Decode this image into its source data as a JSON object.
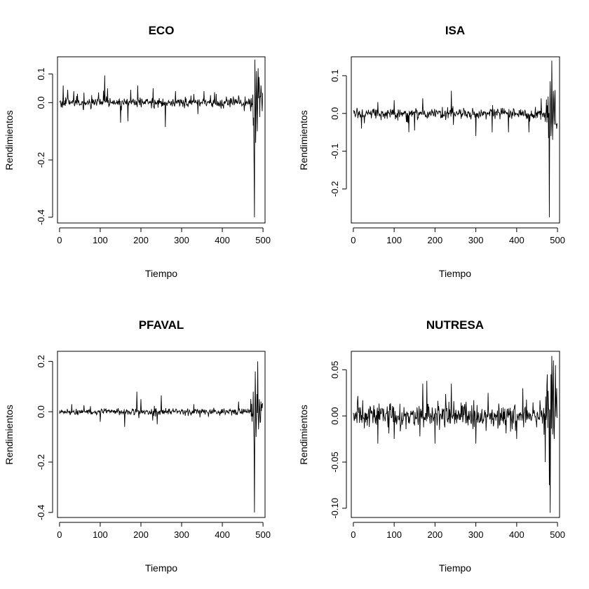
{
  "chart_data": [
    {
      "type": "line",
      "title": "ECO",
      "xlabel": "Tiempo",
      "ylabel": "Rendimientos",
      "xlim": [
        -5,
        505
      ],
      "ylim": [
        -0.42,
        0.16
      ],
      "xticks": [
        0,
        100,
        200,
        300,
        400,
        500
      ],
      "xtick_labels": [
        "0",
        "100",
        "200",
        "300",
        "400",
        "500"
      ],
      "yticks": [
        -0.4,
        -0.2,
        0.0,
        0.1
      ],
      "ytick_labels": [
        "-0.4",
        "-0.2",
        "0.0",
        "0.1"
      ],
      "series": [
        {
          "n": 500,
          "x_step": 1,
          "base_noise": 0.011,
          "late_noise": 0.045,
          "spikes": [
            [
              9,
              0.06
            ],
            [
              20,
              0.045
            ],
            [
              35,
              0.04
            ],
            [
              60,
              0.035
            ],
            [
              111,
              0.095
            ],
            [
              118,
              0.05
            ],
            [
              150,
              -0.07
            ],
            [
              168,
              -0.065
            ],
            [
              175,
              0.045
            ],
            [
              192,
              0.06
            ],
            [
              230,
              0.05
            ],
            [
              260,
              -0.085
            ],
            [
              285,
              0.04
            ],
            [
              330,
              0.03
            ],
            [
              340,
              -0.04
            ],
            [
              440,
              0.025
            ],
            [
              470,
              -0.03
            ],
            [
              476,
              -0.08
            ],
            [
              478,
              -0.22
            ],
            [
              479,
              -0.4
            ],
            [
              480,
              0.15
            ],
            [
              482,
              -0.14
            ],
            [
              484,
              0.11
            ],
            [
              486,
              -0.1
            ],
            [
              488,
              0.12
            ],
            [
              490,
              0.09
            ],
            [
              492,
              -0.05
            ],
            [
              495,
              0.06
            ],
            [
              498,
              -0.03
            ]
          ]
        }
      ]
    },
    {
      "type": "line",
      "title": "ISA",
      "xlabel": "Tiempo",
      "ylabel": "Rendimientos",
      "xlim": [
        -5,
        505
      ],
      "ylim": [
        -0.29,
        0.15
      ],
      "xticks": [
        0,
        100,
        200,
        300,
        400,
        500
      ],
      "xtick_labels": [
        "0",
        "100",
        "200",
        "300",
        "400",
        "500"
      ],
      "yticks": [
        -0.2,
        -0.1,
        0.0,
        0.1
      ],
      "ytick_labels": [
        "-0.2",
        "-0.1",
        "0.0",
        "0.1"
      ],
      "series": [
        {
          "n": 500,
          "x_step": 1,
          "base_noise": 0.01,
          "late_noise": 0.035,
          "spikes": [
            [
              20,
              -0.04
            ],
            [
              60,
              0.03
            ],
            [
              100,
              0.035
            ],
            [
              150,
              -0.045
            ],
            [
              170,
              0.04
            ],
            [
              240,
              0.06
            ],
            [
              245,
              -0.03
            ],
            [
              300,
              -0.06
            ],
            [
              340,
              -0.05
            ],
            [
              380,
              -0.05
            ],
            [
              430,
              -0.05
            ],
            [
              460,
              0.04
            ],
            [
              478,
              -0.065
            ],
            [
              480,
              -0.275
            ],
            [
              482,
              0.085
            ],
            [
              484,
              -0.06
            ],
            [
              486,
              0.14
            ],
            [
              488,
              -0.07
            ],
            [
              490,
              0.06
            ],
            [
              493,
              0.04
            ],
            [
              496,
              -0.03
            ]
          ]
        }
      ]
    },
    {
      "type": "line",
      "title": "PFAVAL",
      "xlabel": "Tiempo",
      "ylabel": "Rendimientos",
      "xlim": [
        -5,
        505
      ],
      "ylim": [
        -0.42,
        0.24
      ],
      "xticks": [
        0,
        100,
        200,
        300,
        400,
        500
      ],
      "xtick_labels": [
        "0",
        "100",
        "200",
        "300",
        "400",
        "500"
      ],
      "yticks": [
        -0.4,
        -0.2,
        0.0,
        0.2
      ],
      "ytick_labels": [
        "-0.4",
        "-0.2",
        "0.0",
        "0.2"
      ],
      "series": [
        {
          "n": 500,
          "x_step": 1,
          "base_noise": 0.009,
          "late_noise": 0.04,
          "spikes": [
            [
              30,
              0.03
            ],
            [
              100,
              -0.04
            ],
            [
              160,
              -0.06
            ],
            [
              190,
              0.08
            ],
            [
              200,
              0.05
            ],
            [
              240,
              -0.05
            ],
            [
              250,
              0.065
            ],
            [
              330,
              0.03
            ],
            [
              440,
              0.04
            ],
            [
              476,
              0.08
            ],
            [
              478,
              -0.13
            ],
            [
              479,
              -0.4
            ],
            [
              481,
              0.16
            ],
            [
              483,
              -0.1
            ],
            [
              485,
              0.07
            ],
            [
              487,
              0.2
            ],
            [
              489,
              -0.07
            ],
            [
              491,
              0.05
            ],
            [
              494,
              -0.04
            ],
            [
              497,
              0.03
            ]
          ]
        }
      ]
    },
    {
      "type": "line",
      "title": "NUTRESA",
      "xlabel": "Tiempo",
      "ylabel": "Rendimientos",
      "xlim": [
        -5,
        505
      ],
      "ylim": [
        -0.11,
        0.07
      ],
      "xticks": [
        0,
        100,
        200,
        300,
        400,
        500
      ],
      "xtick_labels": [
        "0",
        "100",
        "200",
        "300",
        "400",
        "500"
      ],
      "yticks": [
        -0.1,
        -0.05,
        0.0,
        0.05
      ],
      "ytick_labels": [
        "-0.10",
        "-0.05",
        "0.00",
        "0.05"
      ],
      "series": [
        {
          "n": 500,
          "x_step": 1,
          "base_noise": 0.009,
          "late_noise": 0.022,
          "spikes": [
            [
              10,
              0.015
            ],
            [
              60,
              -0.03
            ],
            [
              100,
              -0.025
            ],
            [
              170,
              0.035
            ],
            [
              180,
              0.038
            ],
            [
              200,
              -0.03
            ],
            [
              240,
              0.035
            ],
            [
              300,
              -0.03
            ],
            [
              330,
              0.025
            ],
            [
              400,
              -0.025
            ],
            [
              470,
              -0.05
            ],
            [
              475,
              0.045
            ],
            [
              480,
              -0.075
            ],
            [
              482,
              -0.105
            ],
            [
              484,
              0.045
            ],
            [
              486,
              0.065
            ],
            [
              488,
              -0.02
            ],
            [
              490,
              0.06
            ],
            [
              492,
              -0.025
            ],
            [
              495,
              0.055
            ],
            [
              498,
              0.03
            ]
          ]
        }
      ]
    }
  ]
}
